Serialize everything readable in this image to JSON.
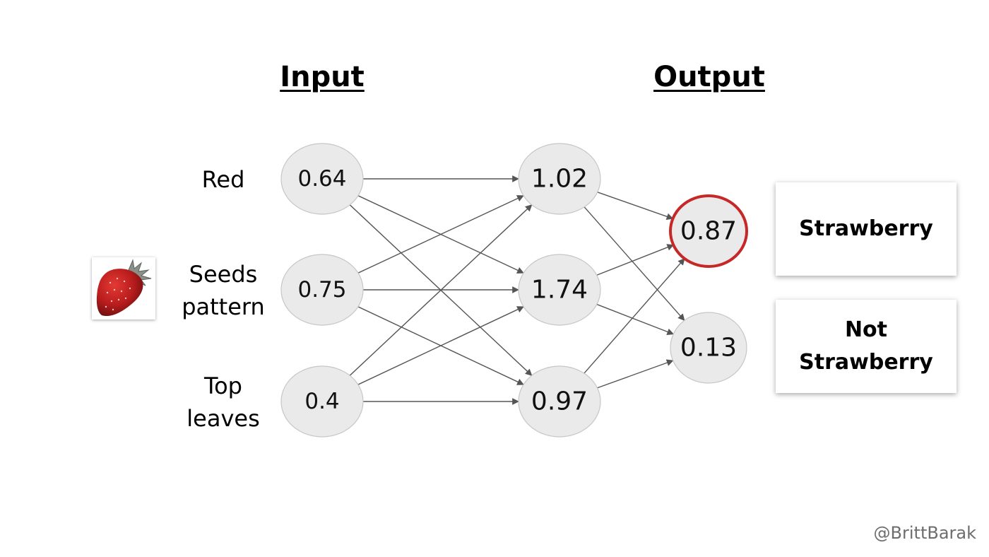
{
  "headings": {
    "input": "Input",
    "output": "Output"
  },
  "features": {
    "red": [
      "Red"
    ],
    "seeds": [
      "Seeds",
      "pattern"
    ],
    "leaves": [
      "Top",
      "leaves"
    ]
  },
  "input_values": [
    "0.64",
    "0.75",
    "0.4"
  ],
  "hidden_values": [
    "1.02",
    "1.74",
    "0.97"
  ],
  "output_values": [
    "0.87",
    "0.13"
  ],
  "selected_output": 0,
  "classes": {
    "strawberry": [
      "Strawberry"
    ],
    "not_strawberry": [
      "Not",
      "Strawberry"
    ]
  },
  "credit": "@BrittBarak",
  "colors": {
    "selected_ring": "#c62828",
    "node_fill": "#eaeaea"
  },
  "image_icon": "strawberry-image"
}
